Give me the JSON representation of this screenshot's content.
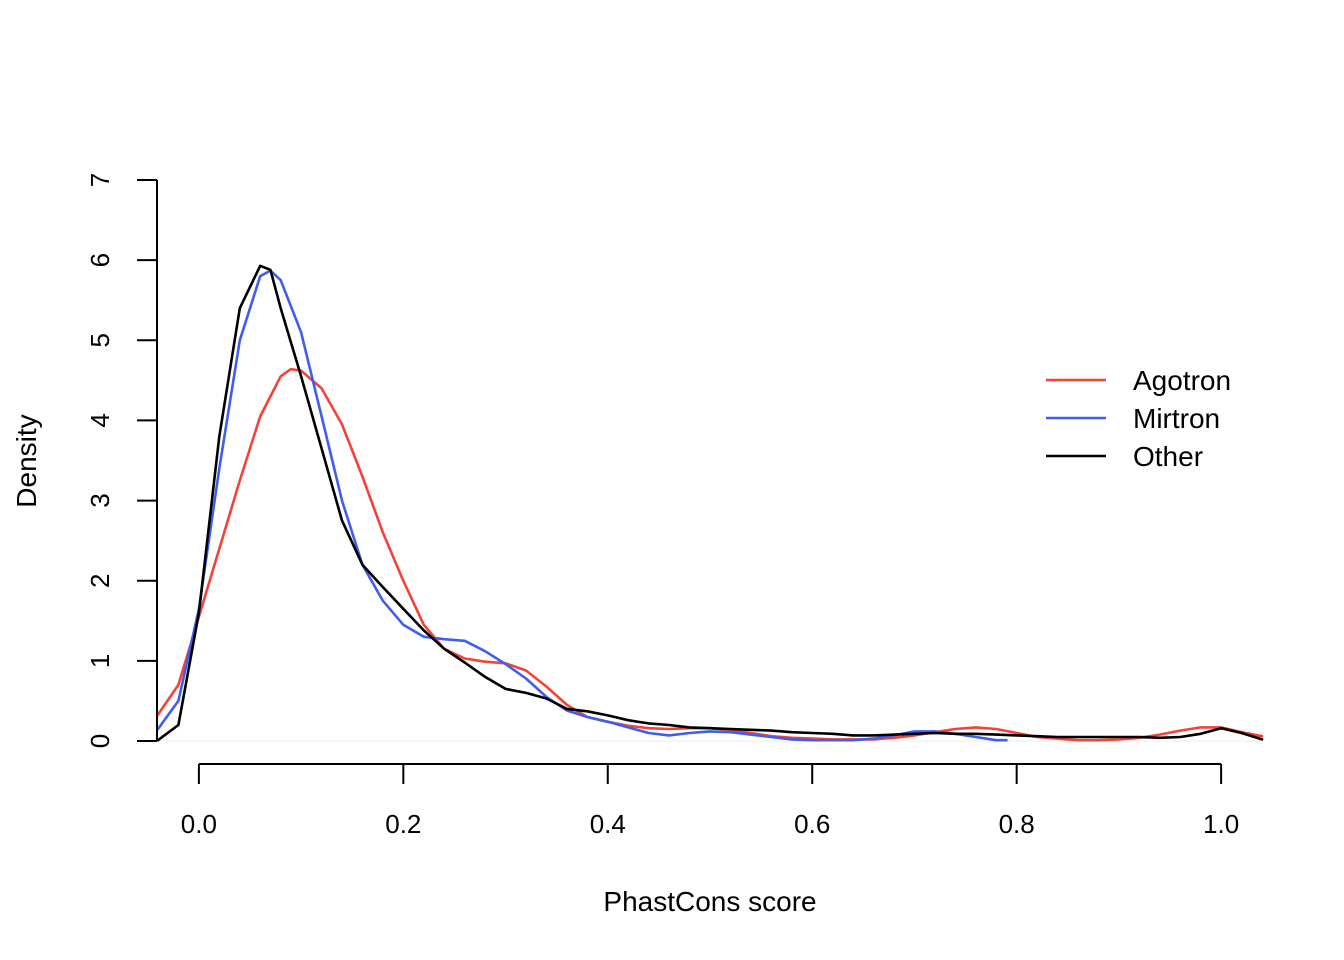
{
  "chart_data": {
    "type": "line",
    "title": "",
    "xlabel": "PhastCons score",
    "ylabel": "Density",
    "xlim": [
      -0.04,
      1.04
    ],
    "ylim": [
      0,
      7
    ],
    "x_ticks": [
      {
        "value": 0.0,
        "label": "0.0"
      },
      {
        "value": 0.2,
        "label": "0.2"
      },
      {
        "value": 0.4,
        "label": "0.4"
      },
      {
        "value": 0.6,
        "label": "0.6"
      },
      {
        "value": 0.8,
        "label": "0.8"
      },
      {
        "value": 1.0,
        "label": "1.0"
      }
    ],
    "y_ticks": [
      {
        "value": 0,
        "label": "0"
      },
      {
        "value": 1,
        "label": "1"
      },
      {
        "value": 2,
        "label": "2"
      },
      {
        "value": 3,
        "label": "3"
      },
      {
        "value": 4,
        "label": "4"
      },
      {
        "value": 5,
        "label": "5"
      },
      {
        "value": 6,
        "label": "6"
      },
      {
        "value": 7,
        "label": "7"
      }
    ],
    "grid": false,
    "legend_position": "right",
    "series": [
      {
        "name": "Agotron",
        "color": "#F44336",
        "points": [
          [
            -0.04,
            0.33
          ],
          [
            -0.02,
            0.7
          ],
          [
            0.0,
            1.55
          ],
          [
            0.02,
            2.4
          ],
          [
            0.04,
            3.25
          ],
          [
            0.06,
            4.05
          ],
          [
            0.08,
            4.55
          ],
          [
            0.09,
            4.64
          ],
          [
            0.1,
            4.62
          ],
          [
            0.12,
            4.4
          ],
          [
            0.14,
            3.95
          ],
          [
            0.16,
            3.3
          ],
          [
            0.18,
            2.6
          ],
          [
            0.2,
            2.0
          ],
          [
            0.22,
            1.45
          ],
          [
            0.24,
            1.15
          ],
          [
            0.26,
            1.03
          ],
          [
            0.28,
            0.99
          ],
          [
            0.3,
            0.97
          ],
          [
            0.32,
            0.88
          ],
          [
            0.34,
            0.68
          ],
          [
            0.36,
            0.45
          ],
          [
            0.38,
            0.3
          ],
          [
            0.4,
            0.24
          ],
          [
            0.42,
            0.19
          ],
          [
            0.44,
            0.16
          ],
          [
            0.46,
            0.15
          ],
          [
            0.48,
            0.16
          ],
          [
            0.5,
            0.16
          ],
          [
            0.52,
            0.14
          ],
          [
            0.54,
            0.1
          ],
          [
            0.56,
            0.06
          ],
          [
            0.58,
            0.04
          ],
          [
            0.6,
            0.03
          ],
          [
            0.62,
            0.02
          ],
          [
            0.64,
            0.02
          ],
          [
            0.66,
            0.02
          ],
          [
            0.68,
            0.04
          ],
          [
            0.7,
            0.07
          ],
          [
            0.72,
            0.11
          ],
          [
            0.74,
            0.15
          ],
          [
            0.76,
            0.17
          ],
          [
            0.78,
            0.15
          ],
          [
            0.8,
            0.1
          ],
          [
            0.82,
            0.05
          ],
          [
            0.84,
            0.03
          ],
          [
            0.86,
            0.01
          ],
          [
            0.88,
            0.01
          ],
          [
            0.9,
            0.02
          ],
          [
            0.92,
            0.04
          ],
          [
            0.94,
            0.08
          ],
          [
            0.96,
            0.13
          ],
          [
            0.98,
            0.17
          ],
          [
            1.0,
            0.17
          ],
          [
            1.02,
            0.11
          ],
          [
            1.04,
            0.06
          ]
        ]
      },
      {
        "name": "Mirtron",
        "color": "#3F5EF0",
        "points": [
          [
            -0.04,
            0.15
          ],
          [
            -0.02,
            0.5
          ],
          [
            0.0,
            1.65
          ],
          [
            0.02,
            3.4
          ],
          [
            0.04,
            5.0
          ],
          [
            0.06,
            5.8
          ],
          [
            0.07,
            5.87
          ],
          [
            0.08,
            5.75
          ],
          [
            0.1,
            5.1
          ],
          [
            0.12,
            4.05
          ],
          [
            0.14,
            3.0
          ],
          [
            0.16,
            2.2
          ],
          [
            0.18,
            1.75
          ],
          [
            0.2,
            1.45
          ],
          [
            0.22,
            1.3
          ],
          [
            0.24,
            1.27
          ],
          [
            0.26,
            1.25
          ],
          [
            0.28,
            1.12
          ],
          [
            0.3,
            0.96
          ],
          [
            0.32,
            0.78
          ],
          [
            0.34,
            0.55
          ],
          [
            0.36,
            0.38
          ],
          [
            0.38,
            0.3
          ],
          [
            0.4,
            0.24
          ],
          [
            0.42,
            0.17
          ],
          [
            0.44,
            0.1
          ],
          [
            0.46,
            0.07
          ],
          [
            0.48,
            0.1
          ],
          [
            0.5,
            0.12
          ],
          [
            0.52,
            0.11
          ],
          [
            0.54,
            0.08
          ],
          [
            0.56,
            0.05
          ],
          [
            0.58,
            0.02
          ],
          [
            0.6,
            0.01
          ],
          [
            0.62,
            0.01
          ],
          [
            0.64,
            0.01
          ],
          [
            0.66,
            0.03
          ],
          [
            0.68,
            0.07
          ],
          [
            0.7,
            0.12
          ],
          [
            0.72,
            0.12
          ],
          [
            0.74,
            0.09
          ],
          [
            0.76,
            0.05
          ],
          [
            0.78,
            0.01
          ],
          [
            0.79,
            0.01
          ]
        ]
      },
      {
        "name": "Other",
        "color": "#000000",
        "points": [
          [
            -0.04,
            0.01
          ],
          [
            -0.02,
            0.2
          ],
          [
            0.0,
            1.6
          ],
          [
            0.02,
            3.8
          ],
          [
            0.04,
            5.4
          ],
          [
            0.06,
            5.93
          ],
          [
            0.07,
            5.88
          ],
          [
            0.08,
            5.4
          ],
          [
            0.1,
            4.55
          ],
          [
            0.12,
            3.65
          ],
          [
            0.14,
            2.75
          ],
          [
            0.16,
            2.2
          ],
          [
            0.18,
            1.92
          ],
          [
            0.2,
            1.65
          ],
          [
            0.22,
            1.38
          ],
          [
            0.24,
            1.15
          ],
          [
            0.26,
            0.98
          ],
          [
            0.28,
            0.8
          ],
          [
            0.3,
            0.65
          ],
          [
            0.32,
            0.6
          ],
          [
            0.34,
            0.53
          ],
          [
            0.36,
            0.4
          ],
          [
            0.38,
            0.37
          ],
          [
            0.4,
            0.32
          ],
          [
            0.42,
            0.26
          ],
          [
            0.44,
            0.22
          ],
          [
            0.46,
            0.2
          ],
          [
            0.48,
            0.17
          ],
          [
            0.5,
            0.16
          ],
          [
            0.52,
            0.15
          ],
          [
            0.54,
            0.14
          ],
          [
            0.56,
            0.13
          ],
          [
            0.58,
            0.11
          ],
          [
            0.6,
            0.1
          ],
          [
            0.62,
            0.09
          ],
          [
            0.64,
            0.07
          ],
          [
            0.66,
            0.07
          ],
          [
            0.68,
            0.08
          ],
          [
            0.7,
            0.09
          ],
          [
            0.72,
            0.1
          ],
          [
            0.74,
            0.09
          ],
          [
            0.76,
            0.09
          ],
          [
            0.78,
            0.08
          ],
          [
            0.8,
            0.07
          ],
          [
            0.82,
            0.06
          ],
          [
            0.84,
            0.05
          ],
          [
            0.86,
            0.05
          ],
          [
            0.88,
            0.05
          ],
          [
            0.9,
            0.05
          ],
          [
            0.92,
            0.05
          ],
          [
            0.94,
            0.04
          ],
          [
            0.96,
            0.05
          ],
          [
            0.98,
            0.09
          ],
          [
            1.0,
            0.16
          ],
          [
            1.02,
            0.1
          ],
          [
            1.04,
            0.02
          ]
        ]
      }
    ]
  }
}
